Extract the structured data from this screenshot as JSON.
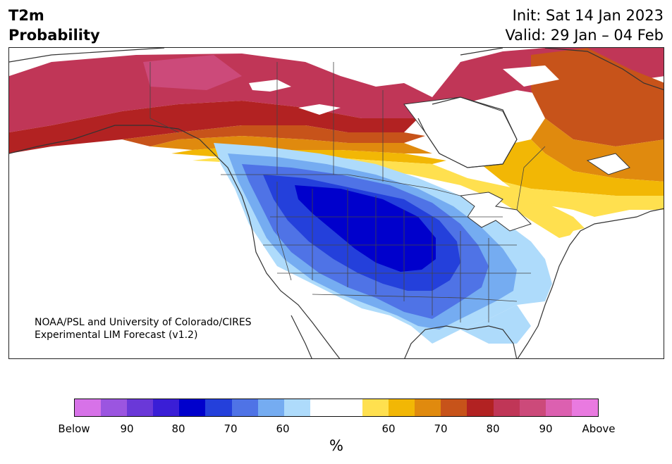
{
  "title": {
    "left_line1": "T2m",
    "left_line2": "Probability",
    "right_line1": "Init: Sat 14 Jan 2023",
    "right_line2": "Valid: 29 Jan – 04 Feb"
  },
  "credit": {
    "line1": "NOAA/PSL and University of Colorado/CIRES",
    "line2": "Experimental LIM Forecast (v1.2)"
  },
  "colorbar": {
    "colors": [
      "#d772e8",
      "#9b55e0",
      "#6a38d8",
      "#3a1ed6",
      "#0000cc",
      "#2440db",
      "#4f73e6",
      "#75acf1",
      "#aedbfb",
      "#ffffff",
      "#ffffff",
      "#ffe04f",
      "#f2b705",
      "#e08a0e",
      "#c7531a",
      "#b22222",
      "#c03657",
      "#cc4a7a",
      "#dc60b0",
      "#e97ae0"
    ],
    "ticks": [
      {
        "label": "Below"
      },
      {
        "label": "90"
      },
      {
        "label": "80"
      },
      {
        "label": "70"
      },
      {
        "label": "60"
      },
      {
        "label": "60"
      },
      {
        "label": "70"
      },
      {
        "label": "80"
      },
      {
        "label": "90"
      },
      {
        "label": "Above"
      }
    ],
    "unit": "%"
  },
  "map": {
    "ocean_color": "#ffffff",
    "coast_color": "#333333",
    "warm_colors": [
      "#ffe04f",
      "#f2b705",
      "#e08a0e",
      "#c7531a",
      "#b22222",
      "#c03657",
      "#cc4a7a"
    ],
    "cold_colors": [
      "#aedbfb",
      "#75acf1",
      "#4f73e6",
      "#2440db",
      "#0000cc"
    ]
  }
}
